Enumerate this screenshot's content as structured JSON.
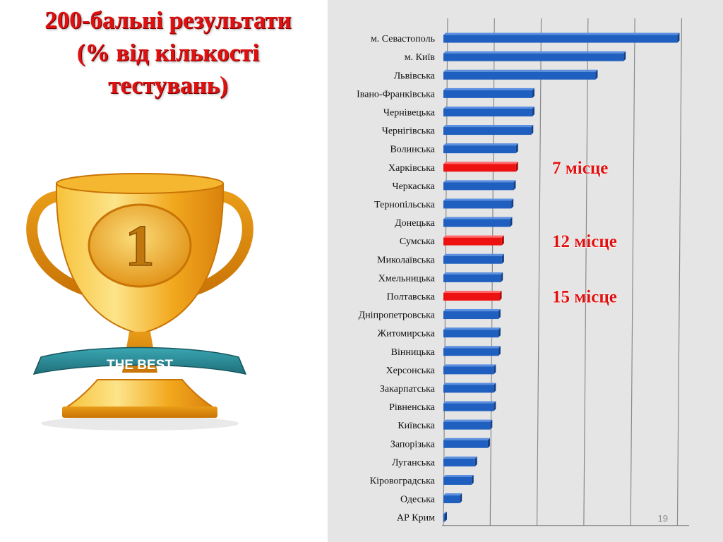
{
  "slide": {
    "title_lines": [
      "200-бальні результати",
      "(% від кількості",
      "тестувань)"
    ],
    "page_number": "19"
  },
  "trophy": {
    "icon": "trophy-icon",
    "number": "1",
    "ribbon_text": "THE BEST",
    "colors": {
      "gold": "#f2a81d",
      "ribbon": "#2e8f9b"
    }
  },
  "chart_data": {
    "type": "bar",
    "orientation": "horizontal",
    "categories": [
      "м. Севастополь",
      "м. Київ",
      "Львівська",
      "Івано-Франківська",
      "Чернівецька",
      "Чернігівська",
      "Волинська",
      "Харківська",
      "Черкаська",
      "Тернопільська",
      "Донецька",
      "Сумська",
      "Миколаївська",
      "Хмельницька",
      "Полтавська",
      "Дніпропетровська",
      "Житомирська",
      "Вінницька",
      "Херсонська",
      "Закарпатська",
      "Рівненська",
      "Київська",
      "Запорізька",
      "Луганська",
      "Кіровоградська",
      "Одеська",
      "АР Крим"
    ],
    "values": [
      100,
      77,
      65,
      38,
      38,
      37.5,
      31,
      31,
      30,
      29,
      28.5,
      25,
      25,
      24.5,
      24,
      23.5,
      23.5,
      23.5,
      21.5,
      21.5,
      21.5,
      20,
      19,
      13.5,
      12,
      7,
      0.5
    ],
    "xlim": [
      0,
      105
    ],
    "grid": true,
    "bar_color": "#1f5fbf",
    "highlight_color": "#ee1111",
    "highlighted": [
      {
        "category": "Харківська",
        "label": "7 місце"
      },
      {
        "category": "Сумська",
        "label": "12 місце"
      },
      {
        "category": "Полтавська",
        "label": "15 місце"
      }
    ]
  }
}
